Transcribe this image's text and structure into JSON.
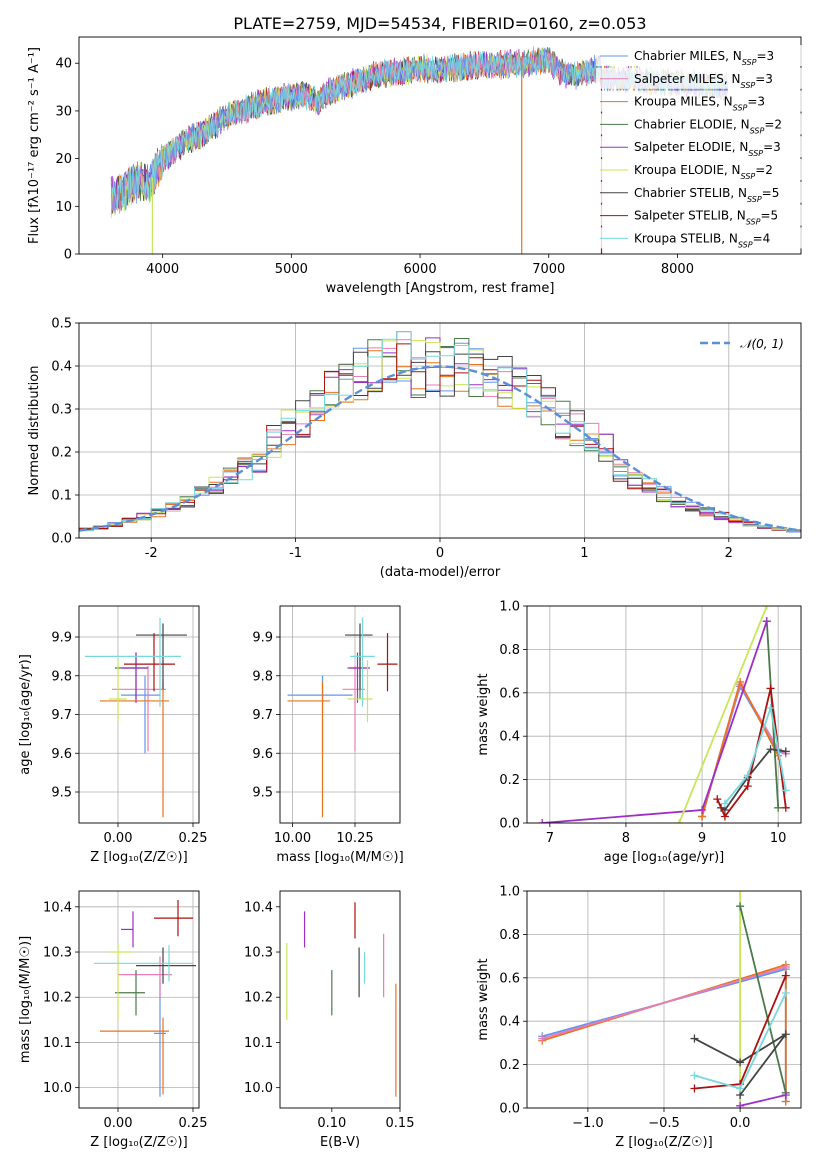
{
  "title": "PLATE=2759, MJD=54534, FIBERID=0160, z=0.053",
  "colors": {
    "chabrier_miles": "#6495ed",
    "salpeter_miles": "#e87cb6",
    "kroupa_miles": "#e8731c",
    "chabrier_elodie": "#4a7a4a",
    "salpeter_elodie": "#9b30c8",
    "kroupa_elodie": "#c8e65a",
    "chabrier_stelib": "#444444",
    "salpeter_stelib": "#aa1111",
    "kroupa_stelib": "#78d8dc",
    "normal": "#5b8fd9"
  },
  "models": [
    {
      "key": "chabrier_miles",
      "label": "Chabrier MILES, N",
      "sub": "SSP",
      "n": "=3"
    },
    {
      "key": "salpeter_miles",
      "label": "Salpeter MILES, N",
      "sub": "SSP",
      "n": "=3"
    },
    {
      "key": "kroupa_miles",
      "label": "Kroupa MILES, N",
      "sub": "SSP",
      "n": "=3"
    },
    {
      "key": "chabrier_elodie",
      "label": "Chabrier ELODIE, N",
      "sub": "SSP",
      "n": "=2"
    },
    {
      "key": "salpeter_elodie",
      "label": "Salpeter ELODIE, N",
      "sub": "SSP",
      "n": "=3"
    },
    {
      "key": "kroupa_elodie",
      "label": "Kroupa ELODIE, N",
      "sub": "SSP",
      "n": "=2"
    },
    {
      "key": "chabrier_stelib",
      "label": "Chabrier STELIB, N",
      "sub": "SSP",
      "n": "=5"
    },
    {
      "key": "salpeter_stelib",
      "label": "Salpeter STELIB, N",
      "sub": "SSP",
      "n": "=5"
    },
    {
      "key": "kroupa_stelib",
      "label": "Kroupa STELIB, N",
      "sub": "SSP",
      "n": "=4"
    }
  ],
  "chart_data": [
    {
      "id": "spectrum",
      "type": "line",
      "xlabel": "wavelength [Angstrom, rest frame]",
      "ylabel": "Flux [fλ10⁻¹⁷ erg cm⁻² s⁻¹ A⁻¹]",
      "xlim": [
        3350,
        8960
      ],
      "ylim": [
        0,
        45.5
      ],
      "xticks": [
        4000,
        5000,
        6000,
        7000,
        8000
      ],
      "yticks": [
        0,
        10,
        20,
        30,
        40
      ],
      "grid": false,
      "legend": "top-right",
      "continuum": {
        "x": [
          3600,
          3700,
          3800,
          3900,
          4000,
          4100,
          4200,
          4300,
          4400,
          4500,
          4600,
          4700,
          4800,
          4900,
          5000,
          5100,
          5200,
          5300,
          5400,
          5500,
          5600,
          5700,
          5800,
          5900,
          6000,
          6100,
          6200,
          6300,
          6400,
          6500,
          6600,
          6700,
          6800,
          6900,
          7000,
          7100,
          7200,
          7300,
          7400
        ],
        "y": [
          12,
          13,
          15,
          15,
          20,
          22,
          24,
          25,
          27,
          29,
          30,
          31,
          32,
          32.5,
          33,
          33.5,
          32,
          34,
          35,
          36,
          37,
          38,
          38,
          38.5,
          39,
          38.5,
          39,
          39,
          39.5,
          39.5,
          39.5,
          40,
          40,
          40.5,
          40.5,
          38,
          37.5,
          38,
          39
        ]
      },
      "dropouts": [
        {
          "x": 3920,
          "to": 0
        },
        {
          "x": 6790,
          "to": 0
        },
        {
          "x": 7410,
          "to": 0
        }
      ]
    },
    {
      "id": "residuals",
      "type": "histogram",
      "xlabel": "(data-model)/error",
      "ylabel": "Normed distribution",
      "xlim": [
        -2.5,
        2.5
      ],
      "ylim": [
        0,
        0.5
      ],
      "xticks": [
        -2,
        -1,
        0,
        1,
        2
      ],
      "yticks": [
        0.0,
        0.1,
        0.2,
        0.3,
        0.4,
        0.5
      ],
      "grid": true,
      "legend": "top-right",
      "normal_label": "𝒩(0, 1)",
      "bin_width": 0.1,
      "bin_start": -2.5
    },
    {
      "id": "age_vs_Z",
      "type": "errorbar",
      "xlabel": "Z [log₁₀(Z/Z☉)]",
      "ylabel": "age  [log₁₀(age/yr)]",
      "xlim": [
        -0.13,
        0.27
      ],
      "ylim": [
        9.42,
        9.98
      ],
      "xticks": [
        0.0,
        0.25
      ],
      "xticklabels": [
        "0.00",
        "0.25"
      ],
      "yticks": [
        9.5,
        9.6,
        9.7,
        9.8,
        9.9
      ],
      "grid": true,
      "points": [
        {
          "model": "chabrier_miles",
          "x": 0.09,
          "xerr": [
            0.08,
            0.05
          ],
          "y": 9.75,
          "yerr": [
            0.15,
            0.05
          ]
        },
        {
          "model": "salpeter_miles",
          "x": 0.1,
          "xerr": [
            0.12,
            0.06
          ],
          "y": 9.765,
          "yerr": [
            0.16,
            0.06
          ]
        },
        {
          "model": "kroupa_miles",
          "x": 0.15,
          "xerr": [
            0.21,
            0.02
          ],
          "y": 9.735,
          "yerr": [
            0.3,
            0.05
          ]
        },
        {
          "model": "chabrier_elodie",
          "x": 0.06,
          "xerr": [
            0.07,
            0.04
          ],
          "y": 9.82,
          "yerr": [
            0.08,
            0.04
          ]
        },
        {
          "model": "salpeter_elodie",
          "x": 0.06,
          "xerr": [
            0.05,
            0.04
          ],
          "y": 9.82,
          "yerr": [
            0.09,
            0.04
          ]
        },
        {
          "model": "kroupa_elodie",
          "x": 0.0,
          "xerr": [
            0.03,
            0.03
          ],
          "y": 9.74,
          "yerr": [
            0.06,
            0.1
          ]
        },
        {
          "model": "chabrier_stelib",
          "x": 0.15,
          "xerr": [
            0.09,
            0.08
          ],
          "y": 9.905,
          "yerr": [
            0.14,
            0.03
          ]
        },
        {
          "model": "salpeter_stelib",
          "x": 0.12,
          "xerr": [
            0.1,
            0.07
          ],
          "y": 9.83,
          "yerr": [
            0.07,
            0.08
          ]
        },
        {
          "model": "kroupa_stelib",
          "x": 0.14,
          "xerr": [
            0.25,
            0.07
          ],
          "y": 9.85,
          "yerr": [
            0.13,
            0.1
          ]
        }
      ]
    },
    {
      "id": "age_vs_mass",
      "type": "errorbar",
      "xlabel": "mass [log₁₀(M/M☉)]",
      "ylabel": "",
      "xlim": [
        9.95,
        10.43
      ],
      "ylim": [
        9.42,
        9.98
      ],
      "xticks": [
        10.0,
        10.25
      ],
      "xticklabels": [
        "10.00",
        "10.25"
      ],
      "yticks": [
        9.5,
        9.6,
        9.7,
        9.8,
        9.9
      ],
      "grid": true,
      "points": [
        {
          "model": "chabrier_miles",
          "x": 10.12,
          "xerr": [
            0.14,
            0.12
          ],
          "y": 9.75,
          "yerr": [
            0.15,
            0.05
          ]
        },
        {
          "model": "salpeter_miles",
          "x": 10.25,
          "xerr": [
            0.05,
            0.04
          ],
          "y": 9.765,
          "yerr": [
            0.16,
            0.06
          ]
        },
        {
          "model": "kroupa_miles",
          "x": 10.12,
          "xerr": [
            0.14,
            0.03
          ],
          "y": 9.735,
          "yerr": [
            0.3,
            0.05
          ]
        },
        {
          "model": "chabrier_elodie",
          "x": 10.27,
          "xerr": [
            0.04,
            0.02
          ],
          "y": 9.82,
          "yerr": [
            0.08,
            0.04
          ]
        },
        {
          "model": "salpeter_elodie",
          "x": 10.26,
          "xerr": [
            0.04,
            0.05
          ],
          "y": 9.82,
          "yerr": [
            0.09,
            0.04
          ]
        },
        {
          "model": "kroupa_elodie",
          "x": 10.3,
          "xerr": [
            0.08,
            0.02
          ],
          "y": 9.74,
          "yerr": [
            0.06,
            0.1
          ]
        },
        {
          "model": "chabrier_stelib",
          "x": 10.27,
          "xerr": [
            0.06,
            0.05
          ],
          "y": 9.905,
          "yerr": [
            0.14,
            0.03
          ]
        },
        {
          "model": "salpeter_stelib",
          "x": 10.38,
          "xerr": [
            0.04,
            0.04
          ],
          "y": 9.83,
          "yerr": [
            0.07,
            0.08
          ]
        },
        {
          "model": "kroupa_stelib",
          "x": 10.28,
          "xerr": [
            0.05,
            0.05
          ],
          "y": 9.85,
          "yerr": [
            0.13,
            0.1
          ]
        }
      ]
    },
    {
      "id": "massweight_vs_age",
      "type": "line",
      "xlabel": "age  [log₁₀(age/yr)]",
      "ylabel": "mass weight",
      "xlim": [
        6.7,
        10.3
      ],
      "ylim": [
        0,
        1.0
      ],
      "xticks": [
        7,
        8,
        9,
        10
      ],
      "yticks": [
        0.0,
        0.2,
        0.4,
        0.6,
        0.8,
        1.0
      ],
      "grid": true,
      "series": [
        {
          "model": "chabrier_miles",
          "x": [
            9.0,
            9.5,
            10.0,
            10.1
          ],
          "y": [
            0.03,
            0.63,
            0.33,
            0.32
          ]
        },
        {
          "model": "salpeter_miles",
          "x": [
            9.0,
            9.5,
            10.0,
            10.1
          ],
          "y": [
            0.03,
            0.64,
            0.34,
            0.32
          ]
        },
        {
          "model": "kroupa_miles",
          "x": [
            9.0,
            9.5,
            10.0
          ],
          "y": [
            0.03,
            0.65,
            0.31
          ]
        },
        {
          "model": "chabrier_elodie",
          "x": [
            9.85,
            10.0
          ],
          "y": [
            0.93,
            0.07
          ]
        },
        {
          "model": "salpeter_elodie",
          "x": [
            6.9,
            9.0,
            9.85
          ],
          "y": [
            0.0,
            0.06,
            0.93
          ]
        },
        {
          "model": "kroupa_elodie",
          "x": [
            8.7,
            9.85
          ],
          "y": [
            0.0,
            1.0
          ]
        },
        {
          "model": "chabrier_stelib",
          "x": [
            9.25,
            9.3,
            9.6,
            9.9,
            10.1
          ],
          "y": [
            0.07,
            0.06,
            0.21,
            0.34,
            0.33
          ]
        },
        {
          "model": "salpeter_stelib",
          "x": [
            9.2,
            9.3,
            9.6,
            9.9,
            10.1
          ],
          "y": [
            0.11,
            0.03,
            0.17,
            0.62,
            0.07
          ]
        },
        {
          "model": "kroupa_stelib",
          "x": [
            9.3,
            9.6,
            9.9,
            10.1
          ],
          "y": [
            0.09,
            0.22,
            0.53,
            0.15
          ]
        }
      ]
    },
    {
      "id": "mass_vs_Z",
      "type": "errorbar",
      "xlabel": "Z [log₁₀(Z/Z☉)]",
      "ylabel": "mass [log₁₀(M/M☉)]",
      "xlim": [
        -0.13,
        0.27
      ],
      "ylim": [
        9.955,
        10.435
      ],
      "xticks": [
        0.0,
        0.25
      ],
      "xticklabels": [
        "0.00",
        "0.25"
      ],
      "yticks": [
        10.0,
        10.1,
        10.2,
        10.3,
        10.4
      ],
      "grid": true,
      "points": [
        {
          "model": "chabrier_miles",
          "x": 0.14,
          "xerr": [
            0.02,
            0.02
          ],
          "y": 10.12,
          "yerr": [
            0.14,
            0.12
          ]
        },
        {
          "model": "salpeter_miles",
          "x": 0.14,
          "xerr": [
            0.14,
            0.04
          ],
          "y": 10.25,
          "yerr": [
            0.05,
            0.04
          ]
        },
        {
          "model": "kroupa_miles",
          "x": 0.15,
          "xerr": [
            0.21,
            0.02
          ],
          "y": 10.125,
          "yerr": [
            0.14,
            0.03
          ]
        },
        {
          "model": "chabrier_elodie",
          "x": 0.06,
          "xerr": [
            0.07,
            0.03
          ],
          "y": 10.21,
          "yerr": [
            0.05,
            0.05
          ]
        },
        {
          "model": "salpeter_elodie",
          "x": 0.05,
          "xerr": [
            0.04,
            0.0
          ],
          "y": 10.35,
          "yerr": [
            0.04,
            0.04
          ]
        },
        {
          "model": "kroupa_elodie",
          "x": 0.0,
          "xerr": [
            0.03,
            0.05
          ],
          "y": 10.3,
          "yerr": [
            0.15,
            0.02
          ]
        },
        {
          "model": "chabrier_stelib",
          "x": 0.15,
          "xerr": [
            0.09,
            0.11
          ],
          "y": 10.27,
          "yerr": [
            0.04,
            0.04
          ]
        },
        {
          "model": "salpeter_stelib",
          "x": 0.2,
          "xerr": [
            0.08,
            0.05
          ],
          "y": 10.375,
          "yerr": [
            0.04,
            0.04
          ]
        },
        {
          "model": "kroupa_stelib",
          "x": 0.17,
          "xerr": [
            0.25,
            0.08
          ],
          "y": 10.275,
          "yerr": [
            0.04,
            0.04
          ]
        }
      ]
    },
    {
      "id": "mass_vs_ebv",
      "type": "errorbar",
      "xlabel": "E(B-V)",
      "ylabel": "",
      "xlim": [
        0.062,
        0.15
      ],
      "ylim": [
        9.955,
        10.435
      ],
      "xticks": [
        0.1,
        0.15
      ],
      "xticklabels": [
        "0.10",
        "0.15"
      ],
      "yticks": [
        10.0,
        10.1,
        10.2,
        10.3,
        10.4
      ],
      "grid": false,
      "points": [
        {
          "model": "kroupa_elodie",
          "x": 0.067,
          "y": 10.23,
          "yerr": [
            0.08,
            0.09
          ]
        },
        {
          "model": "salpeter_elodie",
          "x": 0.08,
          "y": 10.35,
          "yerr": [
            0.04,
            0.04
          ]
        },
        {
          "model": "chabrier_elodie",
          "x": 0.1,
          "y": 10.21,
          "yerr": [
            0.05,
            0.05
          ]
        },
        {
          "model": "salpeter_stelib",
          "x": 0.117,
          "y": 10.37,
          "yerr": [
            0.04,
            0.04
          ]
        },
        {
          "model": "chabrier_stelib",
          "x": 0.12,
          "y": 10.25,
          "yerr": [
            0.05,
            0.06
          ]
        },
        {
          "model": "kroupa_stelib",
          "x": 0.124,
          "y": 10.26,
          "yerr": [
            0.03,
            0.04
          ]
        },
        {
          "model": "salpeter_miles",
          "x": 0.138,
          "y": 10.27,
          "yerr": [
            0.07,
            0.07
          ]
        },
        {
          "model": "kroupa_miles",
          "x": 0.147,
          "y": 10.12,
          "yerr": [
            0.14,
            0.11
          ]
        }
      ]
    },
    {
      "id": "massweight_vs_Z",
      "type": "line",
      "xlabel": "Z [log₁₀(Z/Z☉)]",
      "ylabel": "mass weight",
      "xlim": [
        -1.4,
        0.4
      ],
      "ylim": [
        0,
        1.0
      ],
      "xticks": [
        -1.0,
        -0.5,
        0.0
      ],
      "xticklabels": [
        "−1.0",
        "−0.5",
        "0.0"
      ],
      "yticks": [
        0.0,
        0.2,
        0.4,
        0.6,
        0.8,
        1.0
      ],
      "grid": true,
      "series": [
        {
          "model": "chabrier_miles",
          "x": [
            -1.3,
            0.3,
            0.3
          ],
          "y": [
            0.33,
            0.64,
            0.03
          ]
        },
        {
          "model": "kroupa_miles",
          "x": [
            -1.3,
            0.3,
            0.3
          ],
          "y": [
            0.31,
            0.66,
            0.03
          ]
        },
        {
          "model": "salpeter_miles",
          "x": [
            -1.3,
            0.3
          ],
          "y": [
            0.32,
            0.65
          ]
        },
        {
          "model": "kroupa_elodie",
          "x": [
            0.0,
            0.0
          ],
          "y": [
            1.0,
            0.0
          ]
        },
        {
          "model": "chabrier_elodie",
          "x": [
            0.0,
            0.3
          ],
          "y": [
            0.93,
            0.07
          ]
        },
        {
          "model": "salpeter_elodie",
          "x": [
            0.0,
            0.3
          ],
          "y": [
            0.01,
            0.06
          ]
        },
        {
          "model": "chabrier_stelib",
          "x": [
            -0.3,
            0.0,
            0.3,
            0.0
          ],
          "y": [
            0.32,
            0.21,
            0.34,
            0.06
          ]
        },
        {
          "model": "salpeter_stelib",
          "x": [
            -0.3,
            0.0,
            0.3
          ],
          "y": [
            0.09,
            0.11,
            0.61
          ]
        },
        {
          "model": "kroupa_stelib",
          "x": [
            -0.3,
            0.0,
            0.3
          ],
          "y": [
            0.15,
            0.09,
            0.53
          ]
        }
      ]
    }
  ]
}
